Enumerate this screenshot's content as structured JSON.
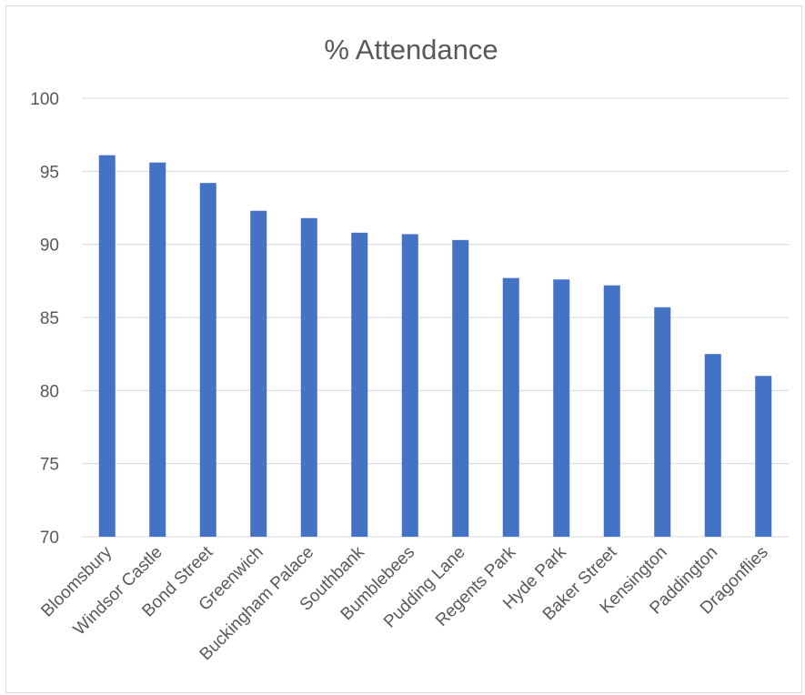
{
  "chart_data": {
    "type": "bar",
    "title": "% Attendance",
    "xlabel": "",
    "ylabel": "",
    "ylim": [
      70,
      100
    ],
    "yticks": [
      70,
      75,
      80,
      85,
      90,
      95,
      100
    ],
    "grid": true,
    "legend": "none",
    "bar_color": "#4472c4",
    "categories": [
      "Bloomsbury",
      "Windsor Castle",
      "Bond Street",
      "Greenwich",
      "Buckingham Palace",
      "Southbank",
      "Bumblebees",
      "Pudding Lane",
      "Regents Park",
      "Hyde Park",
      "Baker Street",
      "Kensington",
      "Paddington",
      "Dragonflies"
    ],
    "values": [
      96.1,
      95.6,
      94.2,
      92.3,
      91.8,
      90.8,
      90.7,
      90.3,
      87.7,
      87.6,
      87.2,
      85.7,
      82.5,
      81.0
    ]
  }
}
